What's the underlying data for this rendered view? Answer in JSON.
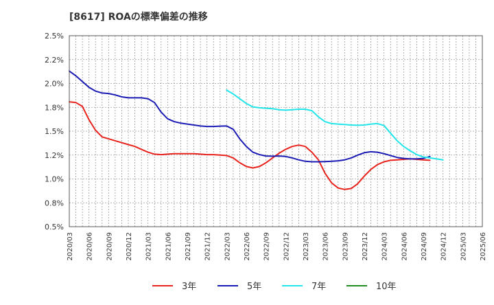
{
  "chart_data": {
    "type": "line",
    "title": "[8617]  ROAの標準偏差の推移",
    "xlabel": "",
    "ylabel": "",
    "ylim": [
      0.005,
      0.025
    ],
    "y_ticks": [
      "0.5%",
      "0.8%",
      "1.0%",
      "1.2%",
      "1.5%",
      "1.8%",
      "2.0%",
      "2.2%",
      "2.5%"
    ],
    "x_ticks": [
      "2020/03",
      "2020/06",
      "2020/09",
      "2020/12",
      "2021/03",
      "2021/06",
      "2021/09",
      "2021/12",
      "2022/03",
      "2022/06",
      "2022/09",
      "2022/12",
      "2023/03",
      "2023/06",
      "2023/09",
      "2023/12",
      "2024/03",
      "2024/06",
      "2024/09",
      "2024/12",
      "2025/03",
      "2025/06"
    ],
    "x_range": [
      "2020/03",
      "2025/06"
    ],
    "grid": true,
    "legend_position": "bottom",
    "series": [
      {
        "name": "3年",
        "color": "#e8221c",
        "start": "2020/03",
        "values": [
          0.01808,
          0.018,
          0.0176,
          0.0162,
          0.0151,
          0.0144,
          0.0142,
          0.014,
          0.0138,
          0.0136,
          0.0134,
          0.0131,
          0.0128,
          0.0126,
          0.01255,
          0.0126,
          0.01265,
          0.01265,
          0.01265,
          0.01265,
          0.0126,
          0.01255,
          0.01255,
          0.0125,
          0.01245,
          0.0122,
          0.0117,
          0.0113,
          0.01115,
          0.0113,
          0.0117,
          0.0122,
          0.0127,
          0.0131,
          0.0134,
          0.01355,
          0.0134,
          0.0128,
          0.012,
          0.0106,
          0.0096,
          0.00905,
          0.0089,
          0.009,
          0.0095,
          0.0103,
          0.011,
          0.0115,
          0.0118,
          0.01195,
          0.012,
          0.01205,
          0.0121,
          0.01205,
          0.012,
          0.01195
        ]
      },
      {
        "name": "5年",
        "color": "#1a1ab4",
        "start": "2020/03",
        "values": [
          0.0213,
          0.0208,
          0.0202,
          0.0196,
          0.0192,
          0.019,
          0.01895,
          0.0188,
          0.0186,
          0.0185,
          0.0185,
          0.0185,
          0.0184,
          0.018,
          0.017,
          0.0163,
          0.016,
          0.01585,
          0.01575,
          0.01565,
          0.01555,
          0.0155,
          0.0155,
          0.01553,
          0.01555,
          0.0152,
          0.0142,
          0.0134,
          0.0128,
          0.01255,
          0.0124,
          0.01238,
          0.0124,
          0.01235,
          0.0122,
          0.012,
          0.01185,
          0.0118,
          0.0118,
          0.01182,
          0.01185,
          0.0119,
          0.012,
          0.0122,
          0.0125,
          0.01275,
          0.01285,
          0.0128,
          0.01265,
          0.01245,
          0.01225,
          0.01215,
          0.0121,
          0.0121,
          0.01215,
          0.01235
        ]
      },
      {
        "name": "7年",
        "color": "#22e5ea",
        "start": "2022/03",
        "values": [
          0.0193,
          0.0189,
          0.0184,
          0.0179,
          0.01755,
          0.01745,
          0.0174,
          0.01735,
          0.01725,
          0.0172,
          0.01725,
          0.0173,
          0.0173,
          0.01715,
          0.0165,
          0.016,
          0.0158,
          0.01575,
          0.0157,
          0.01565,
          0.01562,
          0.01565,
          0.01575,
          0.0158,
          0.0156,
          0.0148,
          0.014,
          0.0134,
          0.01295,
          0.01255,
          0.0123,
          0.0122,
          0.0121,
          0.012
        ]
      },
      {
        "name": "10年",
        "color": "#1e8c1e",
        "start": "2025/03",
        "values": []
      }
    ]
  }
}
